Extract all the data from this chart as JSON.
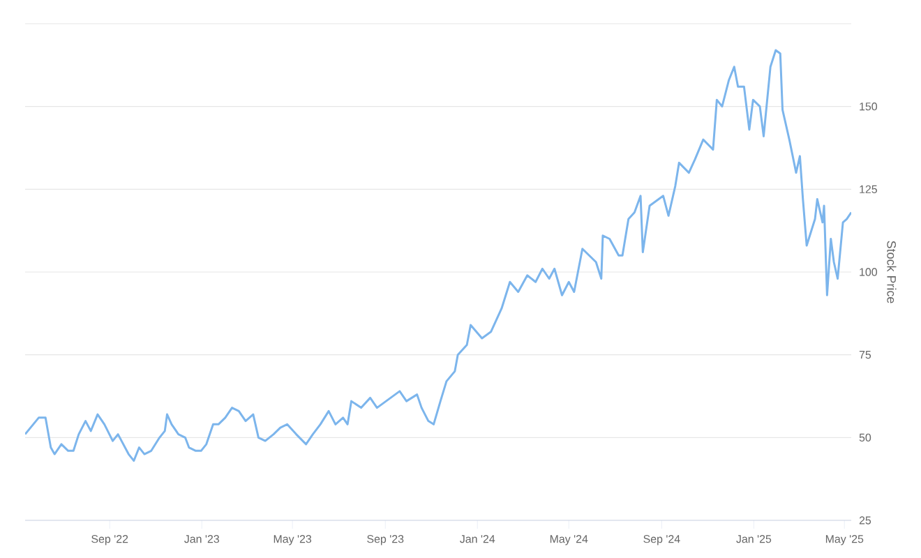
{
  "chart_data": {
    "type": "line",
    "ylabel": "Stock Price",
    "x": [
      "2022-05-12",
      "2022-05-30",
      "2022-06-08",
      "2022-06-15",
      "2022-06-20",
      "2022-06-29",
      "2022-07-08",
      "2022-07-15",
      "2022-07-22",
      "2022-07-31",
      "2022-08-07",
      "2022-08-16",
      "2022-08-25",
      "2022-09-05",
      "2022-09-12",
      "2022-09-26",
      "2022-10-03",
      "2022-10-10",
      "2022-10-17",
      "2022-10-26",
      "2022-11-06",
      "2022-11-13",
      "2022-11-16",
      "2022-11-22",
      "2022-12-01",
      "2022-12-10",
      "2022-12-15",
      "2022-12-24",
      "2022-12-31",
      "2023-01-07",
      "2023-01-16",
      "2023-01-23",
      "2023-02-01",
      "2023-02-10",
      "2023-02-19",
      "2023-02-28",
      "2023-03-10",
      "2023-03-17",
      "2023-03-26",
      "2023-04-06",
      "2023-04-15",
      "2023-04-24",
      "2023-05-06",
      "2023-05-19",
      "2023-05-28",
      "2023-06-07",
      "2023-06-18",
      "2023-06-27",
      "2023-07-07",
      "2023-07-13",
      "2023-07-18",
      "2023-07-31",
      "2023-08-12",
      "2023-08-21",
      "2023-09-02",
      "2023-09-20",
      "2023-09-29",
      "2023-10-13",
      "2023-10-19",
      "2023-10-28",
      "2023-11-04",
      "2023-11-13",
      "2023-11-21",
      "2023-12-02",
      "2023-12-06",
      "2023-12-18",
      "2023-12-23",
      "2024-01-07",
      "2024-01-19",
      "2024-02-02",
      "2024-02-13",
      "2024-02-24",
      "2024-03-07",
      "2024-03-18",
      "2024-03-27",
      "2024-04-05",
      "2024-04-12",
      "2024-04-22",
      "2024-05-01",
      "2024-05-08",
      "2024-05-19",
      "2024-05-28",
      "2024-06-06",
      "2024-06-13",
      "2024-06-15",
      "2024-06-24",
      "2024-07-06",
      "2024-07-11",
      "2024-07-19",
      "2024-07-27",
      "2024-08-04",
      "2024-08-07",
      "2024-08-16",
      "2024-08-28",
      "2024-09-03",
      "2024-09-10",
      "2024-09-19",
      "2024-09-24",
      "2024-10-07",
      "2024-10-15",
      "2024-10-26",
      "2024-11-08",
      "2024-11-13",
      "2024-11-20",
      "2024-11-29",
      "2024-12-06",
      "2024-12-11",
      "2024-12-19",
      "2024-12-26",
      "2024-12-31",
      "2025-01-09",
      "2025-01-14",
      "2025-01-23",
      "2025-01-30",
      "2025-02-05",
      "2025-02-08",
      "2025-02-17",
      "2025-02-26",
      "2025-03-03",
      "2025-03-07",
      "2025-03-12",
      "2025-03-23",
      "2025-03-26",
      "2025-04-02",
      "2025-04-04",
      "2025-04-08",
      "2025-04-13",
      "2025-04-17",
      "2025-04-22",
      "2025-04-29",
      "2025-05-04",
      "2025-05-10"
    ],
    "series": [
      {
        "color": "#7cb5ec",
        "values": [
          51,
          56,
          56,
          47,
          45,
          48,
          46,
          46,
          51,
          55,
          52,
          57,
          54,
          49,
          51,
          45,
          43,
          47,
          45,
          46,
          50,
          52,
          57,
          54,
          51,
          50,
          47,
          46,
          46,
          48,
          54,
          54,
          56,
          59,
          58,
          55,
          57,
          50,
          49,
          51,
          53,
          54,
          51,
          48,
          51,
          54,
          58,
          54,
          56,
          54,
          61,
          59,
          62,
          59,
          61,
          64,
          61,
          63,
          59,
          55,
          54,
          61,
          67,
          70,
          75,
          78,
          84,
          80,
          82,
          89,
          97,
          94,
          99,
          97,
          101,
          98,
          101,
          93,
          97,
          94,
          107,
          105,
          103,
          98,
          111,
          110,
          105,
          105,
          116,
          118,
          123,
          106,
          120,
          122,
          123,
          117,
          126,
          133,
          130,
          134,
          140,
          137,
          152,
          150,
          158,
          162,
          156,
          156,
          143,
          152,
          150,
          141,
          162,
          167,
          166,
          149,
          140,
          130,
          135,
          122,
          108,
          116,
          122,
          115,
          120,
          93,
          110,
          103,
          98,
          115,
          116,
          118
        ]
      }
    ],
    "xlim": [
      "2022-05-12",
      "2025-05-10"
    ],
    "xticks": [
      {
        "value": "2022-09-01",
        "label": "Sep '22"
      },
      {
        "value": "2023-01-01",
        "label": "Jan '23"
      },
      {
        "value": "2023-05-01",
        "label": "May '23"
      },
      {
        "value": "2023-09-01",
        "label": "Sep '23"
      },
      {
        "value": "2024-01-01",
        "label": "Jan '24"
      },
      {
        "value": "2024-05-01",
        "label": "May '24"
      },
      {
        "value": "2024-09-01",
        "label": "Sep '24"
      },
      {
        "value": "2025-01-01",
        "label": "Jan '25"
      },
      {
        "value": "2025-05-01",
        "label": "May '25"
      }
    ],
    "ylim": [
      25,
      175
    ],
    "yticks": [
      25,
      50,
      75,
      100,
      125,
      150,
      {
        "value": 175,
        "label": null
      }
    ],
    "grid": "y",
    "marker": "none",
    "line_style": "solid"
  }
}
